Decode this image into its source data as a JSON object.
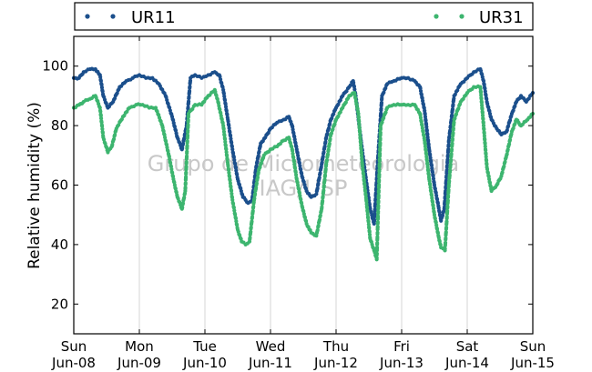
{
  "chart_data": {
    "type": "scatter",
    "ylabel": "Relative humidity (%)",
    "xlabel": "",
    "ylim": [
      10,
      110
    ],
    "yticks": [
      20,
      40,
      60,
      80,
      100
    ],
    "xlim": [
      0,
      7
    ],
    "xticks": [
      {
        "day": "Sun",
        "date": "Jun-08"
      },
      {
        "day": "Mon",
        "date": "Jun-09"
      },
      {
        "day": "Tue",
        "date": "Jun-10"
      },
      {
        "day": "Wed",
        "date": "Jun-11"
      },
      {
        "day": "Thu",
        "date": "Jun-12"
      },
      {
        "day": "Fri",
        "date": "Jun-13"
      },
      {
        "day": "Sat",
        "date": "Jun-14"
      },
      {
        "day": "Sun",
        "date": "Jun-15"
      }
    ],
    "grid": "vertical",
    "legend_placement": "top",
    "watermark": [
      "Grupo de Micrometeorologia",
      "IAG/USP"
    ],
    "series": [
      {
        "name": "UR11",
        "color": "#1b4f8c",
        "points": [
          [
            0.0,
            96
          ],
          [
            0.08,
            96
          ],
          [
            0.15,
            98
          ],
          [
            0.25,
            99
          ],
          [
            0.33,
            99
          ],
          [
            0.4,
            97
          ],
          [
            0.45,
            90
          ],
          [
            0.52,
            86
          ],
          [
            0.6,
            88
          ],
          [
            0.7,
            93
          ],
          [
            0.8,
            95
          ],
          [
            0.9,
            96
          ],
          [
            1.0,
            97
          ],
          [
            1.1,
            96
          ],
          [
            1.2,
            96
          ],
          [
            1.3,
            94
          ],
          [
            1.4,
            90
          ],
          [
            1.5,
            83
          ],
          [
            1.58,
            76
          ],
          [
            1.65,
            72
          ],
          [
            1.72,
            80
          ],
          [
            1.78,
            96
          ],
          [
            1.85,
            97
          ],
          [
            1.95,
            96
          ],
          [
            2.05,
            97
          ],
          [
            2.15,
            98
          ],
          [
            2.22,
            97
          ],
          [
            2.28,
            92
          ],
          [
            2.35,
            82
          ],
          [
            2.42,
            72
          ],
          [
            2.5,
            62
          ],
          [
            2.58,
            56
          ],
          [
            2.66,
            54
          ],
          [
            2.72,
            55
          ],
          [
            2.78,
            66
          ],
          [
            2.85,
            74
          ],
          [
            2.92,
            76
          ],
          [
            3.0,
            79
          ],
          [
            3.1,
            81
          ],
          [
            3.2,
            82
          ],
          [
            3.28,
            83
          ],
          [
            3.33,
            80
          ],
          [
            3.4,
            72
          ],
          [
            3.48,
            63
          ],
          [
            3.55,
            58
          ],
          [
            3.62,
            56
          ],
          [
            3.7,
            57
          ],
          [
            3.78,
            67
          ],
          [
            3.85,
            76
          ],
          [
            3.92,
            82
          ],
          [
            4.0,
            86
          ],
          [
            4.1,
            90
          ],
          [
            4.2,
            93
          ],
          [
            4.26,
            95
          ],
          [
            4.3,
            90
          ],
          [
            4.38,
            75
          ],
          [
            4.45,
            63
          ],
          [
            4.52,
            52
          ],
          [
            4.58,
            47
          ],
          [
            4.63,
            66
          ],
          [
            4.7,
            90
          ],
          [
            4.78,
            94
          ],
          [
            4.88,
            95
          ],
          [
            5.0,
            96
          ],
          [
            5.1,
            96
          ],
          [
            5.2,
            95
          ],
          [
            5.28,
            93
          ],
          [
            5.35,
            85
          ],
          [
            5.42,
            72
          ],
          [
            5.5,
            60
          ],
          [
            5.56,
            53
          ],
          [
            5.6,
            48
          ],
          [
            5.65,
            52
          ],
          [
            5.72,
            75
          ],
          [
            5.8,
            90
          ],
          [
            5.9,
            94
          ],
          [
            6.0,
            96
          ],
          [
            6.1,
            98
          ],
          [
            6.2,
            99
          ],
          [
            6.25,
            95
          ],
          [
            6.3,
            88
          ],
          [
            6.37,
            82
          ],
          [
            6.45,
            79
          ],
          [
            6.52,
            77
          ],
          [
            6.6,
            78
          ],
          [
            6.68,
            84
          ],
          [
            6.75,
            88
          ],
          [
            6.82,
            90
          ],
          [
            6.9,
            88
          ],
          [
            7.0,
            91
          ]
        ]
      },
      {
        "name": "UR31",
        "color": "#3db56f",
        "points": [
          [
            0.0,
            86
          ],
          [
            0.08,
            87
          ],
          [
            0.15,
            88
          ],
          [
            0.25,
            89
          ],
          [
            0.33,
            90
          ],
          [
            0.4,
            86
          ],
          [
            0.45,
            76
          ],
          [
            0.52,
            71
          ],
          [
            0.58,
            73
          ],
          [
            0.65,
            79
          ],
          [
            0.75,
            83
          ],
          [
            0.85,
            86
          ],
          [
            0.95,
            87
          ],
          [
            1.05,
            87
          ],
          [
            1.15,
            86
          ],
          [
            1.25,
            86
          ],
          [
            1.35,
            80
          ],
          [
            1.45,
            70
          ],
          [
            1.52,
            62
          ],
          [
            1.58,
            56
          ],
          [
            1.65,
            52
          ],
          [
            1.7,
            58
          ],
          [
            1.75,
            84
          ],
          [
            1.85,
            87
          ],
          [
            1.95,
            87
          ],
          [
            2.05,
            90
          ],
          [
            2.15,
            92
          ],
          [
            2.2,
            88
          ],
          [
            2.28,
            80
          ],
          [
            2.35,
            67
          ],
          [
            2.42,
            55
          ],
          [
            2.5,
            45
          ],
          [
            2.56,
            41
          ],
          [
            2.62,
            40
          ],
          [
            2.68,
            41
          ],
          [
            2.75,
            55
          ],
          [
            2.82,
            65
          ],
          [
            2.9,
            70
          ],
          [
            3.0,
            72
          ],
          [
            3.1,
            73
          ],
          [
            3.2,
            75
          ],
          [
            3.28,
            76
          ],
          [
            3.33,
            72
          ],
          [
            3.4,
            62
          ],
          [
            3.48,
            53
          ],
          [
            3.55,
            47
          ],
          [
            3.62,
            44
          ],
          [
            3.7,
            43
          ],
          [
            3.78,
            52
          ],
          [
            3.85,
            67
          ],
          [
            3.92,
            77
          ],
          [
            4.0,
            82
          ],
          [
            4.1,
            86
          ],
          [
            4.2,
            90
          ],
          [
            4.28,
            91
          ],
          [
            4.34,
            84
          ],
          [
            4.4,
            67
          ],
          [
            4.46,
            55
          ],
          [
            4.52,
            42
          ],
          [
            4.58,
            38
          ],
          [
            4.62,
            35
          ],
          [
            4.68,
            80
          ],
          [
            4.78,
            86
          ],
          [
            4.88,
            87
          ],
          [
            5.0,
            87
          ],
          [
            5.1,
            87
          ],
          [
            5.2,
            87
          ],
          [
            5.28,
            84
          ],
          [
            5.35,
            75
          ],
          [
            5.42,
            62
          ],
          [
            5.5,
            50
          ],
          [
            5.56,
            43
          ],
          [
            5.6,
            39
          ],
          [
            5.66,
            38
          ],
          [
            5.72,
            60
          ],
          [
            5.8,
            82
          ],
          [
            5.9,
            88
          ],
          [
            6.0,
            91
          ],
          [
            6.1,
            93
          ],
          [
            6.2,
            93
          ],
          [
            6.25,
            80
          ],
          [
            6.3,
            66
          ],
          [
            6.37,
            58
          ],
          [
            6.45,
            60
          ],
          [
            6.52,
            63
          ],
          [
            6.6,
            70
          ],
          [
            6.68,
            78
          ],
          [
            6.75,
            82
          ],
          [
            6.82,
            80
          ],
          [
            6.92,
            82
          ],
          [
            7.0,
            84
          ]
        ]
      }
    ]
  }
}
